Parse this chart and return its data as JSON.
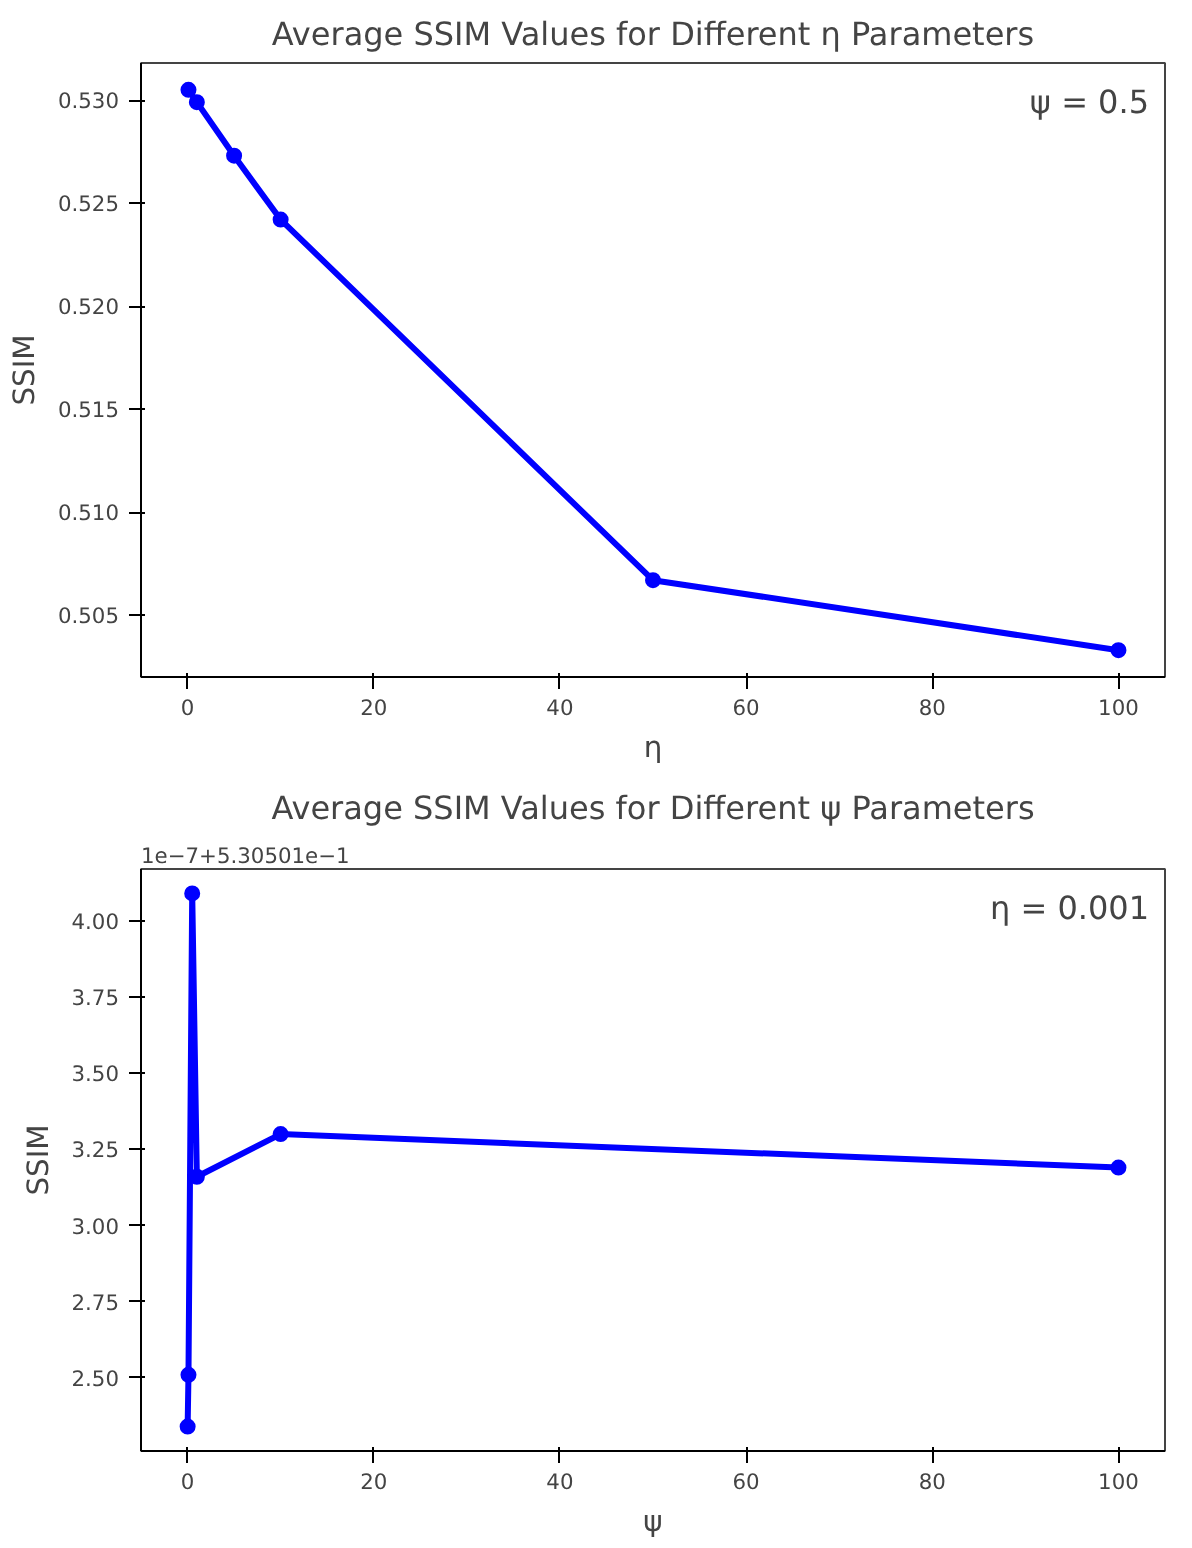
{
  "chart_data": [
    {
      "type": "line",
      "title": "Average SSIM Values for Different η Parameters",
      "xlabel": "η",
      "ylabel": "SSIM",
      "annotations": [
        "ψ = 0.5"
      ],
      "x": [
        0.1,
        1,
        5,
        10,
        50,
        100
      ],
      "series": [
        {
          "color": "#0000ff",
          "values": [
            0.5305,
            0.5299,
            0.5273,
            0.5242,
            0.5067,
            0.5033
          ]
        }
      ],
      "xlim": [
        -5,
        105
      ],
      "xticks": [
        0,
        20,
        40,
        60,
        80,
        100
      ],
      "ylim": [
        0.502,
        0.5318
      ],
      "yticks": [
        {
          "value": 0.505,
          "label": "0.505"
        },
        {
          "value": 0.51,
          "label": "0.510"
        },
        {
          "value": 0.515,
          "label": "0.515"
        },
        {
          "value": 0.52,
          "label": "0.520"
        },
        {
          "value": 0.525,
          "label": "0.525"
        },
        {
          "value": 0.53,
          "label": "0.530"
        }
      ],
      "grid": false,
      "marker": "circle",
      "line_style": "solid"
    },
    {
      "type": "line",
      "title": "Average SSIM Values for Different ψ Parameters",
      "xlabel": "ψ",
      "ylabel": "SSIM",
      "annotations": [
        "η = 0.001",
        "1e−7+5.30501e−1"
      ],
      "x": [
        0.01,
        0.1,
        0.5,
        1,
        10,
        100
      ],
      "series": [
        {
          "color": "#0000ff",
          "values": [
            2.34,
            2.51,
            4.09,
            3.16,
            3.3,
            3.19
          ]
        }
      ],
      "xlim": [
        -5,
        105
      ],
      "xticks": [
        0,
        20,
        40,
        60,
        80,
        100
      ],
      "ylim": [
        2.26,
        4.17
      ],
      "yticks": [
        {
          "value": 2.5,
          "label": "2.50"
        },
        {
          "value": 2.75,
          "label": "2.75"
        },
        {
          "value": 3.0,
          "label": "3.00"
        },
        {
          "value": 3.25,
          "label": "3.25"
        },
        {
          "value": 3.5,
          "label": "3.50"
        },
        {
          "value": 3.75,
          "label": "3.75"
        },
        {
          "value": 4.0,
          "label": "4.00"
        }
      ],
      "grid": false,
      "marker": "circle",
      "line_style": "solid"
    }
  ]
}
